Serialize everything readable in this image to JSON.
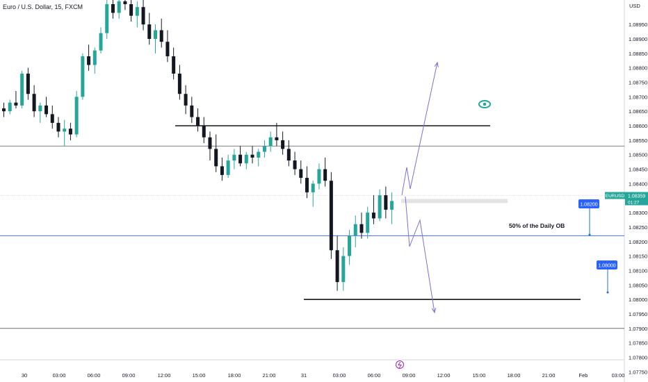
{
  "header": {
    "title": "Euro / U.S. Dollar, 15, FXCM"
  },
  "chart_data": {
    "type": "candlestick",
    "currency": "USD",
    "ylim": [
      1.07725,
      1.09025
    ],
    "y_ticks": [
      "1.08950",
      "1.08900",
      "1.08850",
      "1.08800",
      "1.08750",
      "1.08700",
      "1.08650",
      "1.08600",
      "1.08550",
      "1.08500",
      "1.08450",
      "1.08400",
      "1.08350",
      "1.08300",
      "1.08250",
      "1.08200",
      "1.08150",
      "1.08100",
      "1.08050",
      "1.08000",
      "1.07950",
      "1.07900",
      "1.07850",
      "1.07800",
      "1.07750"
    ],
    "x_ticks": [
      "30",
      "03:00",
      "06:00",
      "09:00",
      "12:00",
      "15:00",
      "18:00",
      "21:00",
      "31",
      "03:00",
      "06:00",
      "09:00",
      "12:00",
      "15:00",
      "18:00",
      "21:00",
      "Feb",
      "03:00"
    ],
    "colors": {
      "up": "#26a69a",
      "down": "#131722",
      "accent": "#2962ff",
      "arrow": "#7b6fd6"
    },
    "price_badge": {
      "symbol": "EURUSD",
      "price": "1.08359",
      "countdown": "01:27"
    },
    "levels": [
      {
        "label": "1.08200",
        "value": 1.082
      },
      {
        "label": "1.08000",
        "value": 1.08
      }
    ],
    "horizontal_lines": [
      1.086,
      1.0853,
      1.0822,
      1.08,
      1.079
    ],
    "annotation": "50% of the Daily OB",
    "candles": [
      [
        1.0866,
        1.0868,
        1.0863,
        1.0865
      ],
      [
        1.0865,
        1.0869,
        1.0864,
        1.0868
      ],
      [
        1.0868,
        1.0872,
        1.0866,
        1.0867
      ],
      [
        1.0867,
        1.0879,
        1.0866,
        1.0878
      ],
      [
        1.0878,
        1.088,
        1.0869,
        1.0871
      ],
      [
        1.0871,
        1.0874,
        1.0863,
        1.0865
      ],
      [
        1.0865,
        1.0868,
        1.0861,
        1.0867
      ],
      [
        1.0867,
        1.087,
        1.0863,
        1.0864
      ],
      [
        1.0864,
        1.0867,
        1.0859,
        1.0861
      ],
      [
        1.0861,
        1.0863,
        1.0856,
        1.0858
      ],
      [
        1.0858,
        1.0862,
        1.0853,
        1.0859
      ],
      [
        1.0859,
        1.0861,
        1.0855,
        1.0857
      ],
      [
        1.0857,
        1.0872,
        1.0856,
        1.087
      ],
      [
        1.087,
        1.0885,
        1.0869,
        1.0884
      ],
      [
        1.0884,
        1.0888,
        1.0879,
        1.0881
      ],
      [
        1.0881,
        1.0887,
        1.0878,
        1.0886
      ],
      [
        1.0886,
        1.0894,
        1.0885,
        1.0892
      ],
      [
        1.0892,
        1.0904,
        1.089,
        1.0902
      ],
      [
        1.0902,
        1.0906,
        1.0897,
        1.0899
      ],
      [
        1.0899,
        1.0905,
        1.0897,
        1.0903
      ],
      [
        1.0903,
        1.0908,
        1.09,
        1.0902
      ],
      [
        1.0902,
        1.0906,
        1.0896,
        1.0898
      ],
      [
        1.0898,
        1.0903,
        1.0894,
        1.0901
      ],
      [
        1.0901,
        1.0904,
        1.0893,
        1.0895
      ],
      [
        1.0895,
        1.0899,
        1.0888,
        1.089
      ],
      [
        1.089,
        1.0895,
        1.0885,
        1.0893
      ],
      [
        1.0893,
        1.0897,
        1.0887,
        1.0889
      ],
      [
        1.0889,
        1.0893,
        1.0882,
        1.0884
      ],
      [
        1.0884,
        1.0887,
        1.0876,
        1.0878
      ],
      [
        1.0878,
        1.0881,
        1.0869,
        1.0871
      ],
      [
        1.0871,
        1.0874,
        1.0864,
        1.0867
      ],
      [
        1.0867,
        1.087,
        1.0861,
        1.0863
      ],
      [
        1.0863,
        1.0866,
        1.0858,
        1.086
      ],
      [
        1.086,
        1.0863,
        1.0854,
        1.0856
      ],
      [
        1.0856,
        1.0858,
        1.0848,
        1.0852
      ],
      [
        1.0852,
        1.0857,
        1.0844,
        1.0846
      ],
      [
        1.0846,
        1.0849,
        1.0841,
        1.0843
      ],
      [
        1.0843,
        1.085,
        1.0842,
        1.0848
      ],
      [
        1.0848,
        1.0852,
        1.0845,
        1.085
      ],
      [
        1.085,
        1.0853,
        1.0846,
        1.0847
      ],
      [
        1.0847,
        1.0851,
        1.0845,
        1.085
      ],
      [
        1.085,
        1.0853,
        1.0847,
        1.0849
      ],
      [
        1.0849,
        1.0852,
        1.0846,
        1.0851
      ],
      [
        1.0851,
        1.0855,
        1.0849,
        1.0853
      ],
      [
        1.0853,
        1.0858,
        1.0851,
        1.0856
      ],
      [
        1.0856,
        1.0861,
        1.0853,
        1.0855
      ],
      [
        1.0855,
        1.0858,
        1.085,
        1.0852
      ],
      [
        1.0852,
        1.0855,
        1.0846,
        1.0848
      ],
      [
        1.0848,
        1.0851,
        1.0843,
        1.0845
      ],
      [
        1.0845,
        1.0848,
        1.084,
        1.0842
      ],
      [
        1.0842,
        1.0846,
        1.0835,
        1.0837
      ],
      [
        1.0837,
        1.0841,
        1.0832,
        1.084
      ],
      [
        1.084,
        1.0847,
        1.0838,
        1.0845
      ],
      [
        1.0845,
        1.0849,
        1.0839,
        1.0841
      ],
      [
        1.0841,
        1.0844,
        1.0814,
        1.0817
      ],
      [
        1.0817,
        1.0822,
        1.0803,
        1.0806
      ],
      [
        1.0806,
        1.0818,
        1.0803,
        1.0815
      ],
      [
        1.0815,
        1.0824,
        1.0812,
        1.0822
      ],
      [
        1.0822,
        1.0829,
        1.0818,
        1.0826
      ],
      [
        1.0826,
        1.083,
        1.0821,
        1.0823
      ],
      [
        1.0823,
        1.0832,
        1.0821,
        1.083
      ],
      [
        1.083,
        1.0836,
        1.0826,
        1.0828
      ],
      [
        1.0828,
        1.0838,
        1.0827,
        1.0836
      ],
      [
        1.0836,
        1.0839,
        1.0828,
        1.0831
      ],
      [
        1.0831,
        1.0837,
        1.0826,
        1.0834
      ]
    ]
  }
}
